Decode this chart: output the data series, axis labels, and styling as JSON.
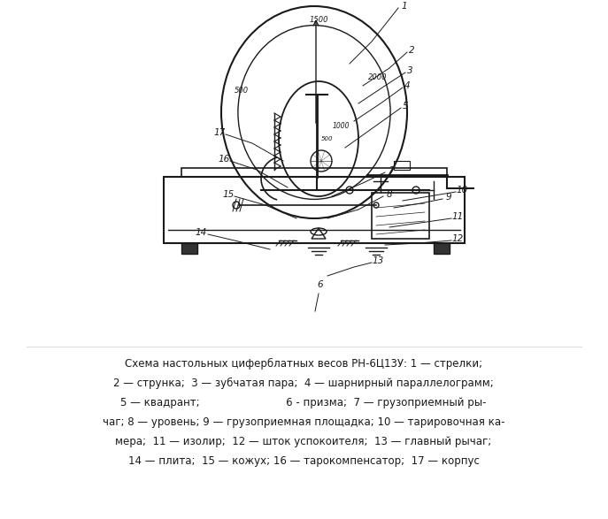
{
  "title": "",
  "caption_line1": "Схема настольных циферблатных весов РН-6Ц13У: 1 — стрелки;",
  "caption_line2": "2 — струнка;  3 — зубчатая пара;  4 — шарнирный параллелограмм;",
  "caption_line3": "5 — квадрант;                          6 - призма;  7 — грузоприемный ры-",
  "caption_line4": "чаг; 8 — уровень; 9 — грузоприемная площадка; 10 — тарировочная ка-",
  "caption_line5": "мера;  11 — изолир;  12 — шток успокоителя;  13 — главный рычаг;",
  "caption_line6": "14 — плита;  15 — кожух; 16 — тарокомпенсатор;  17 — корпус",
  "bg_color": "#ffffff",
  "line_color": "#1a1a1a",
  "text_color": "#1a1a1a"
}
